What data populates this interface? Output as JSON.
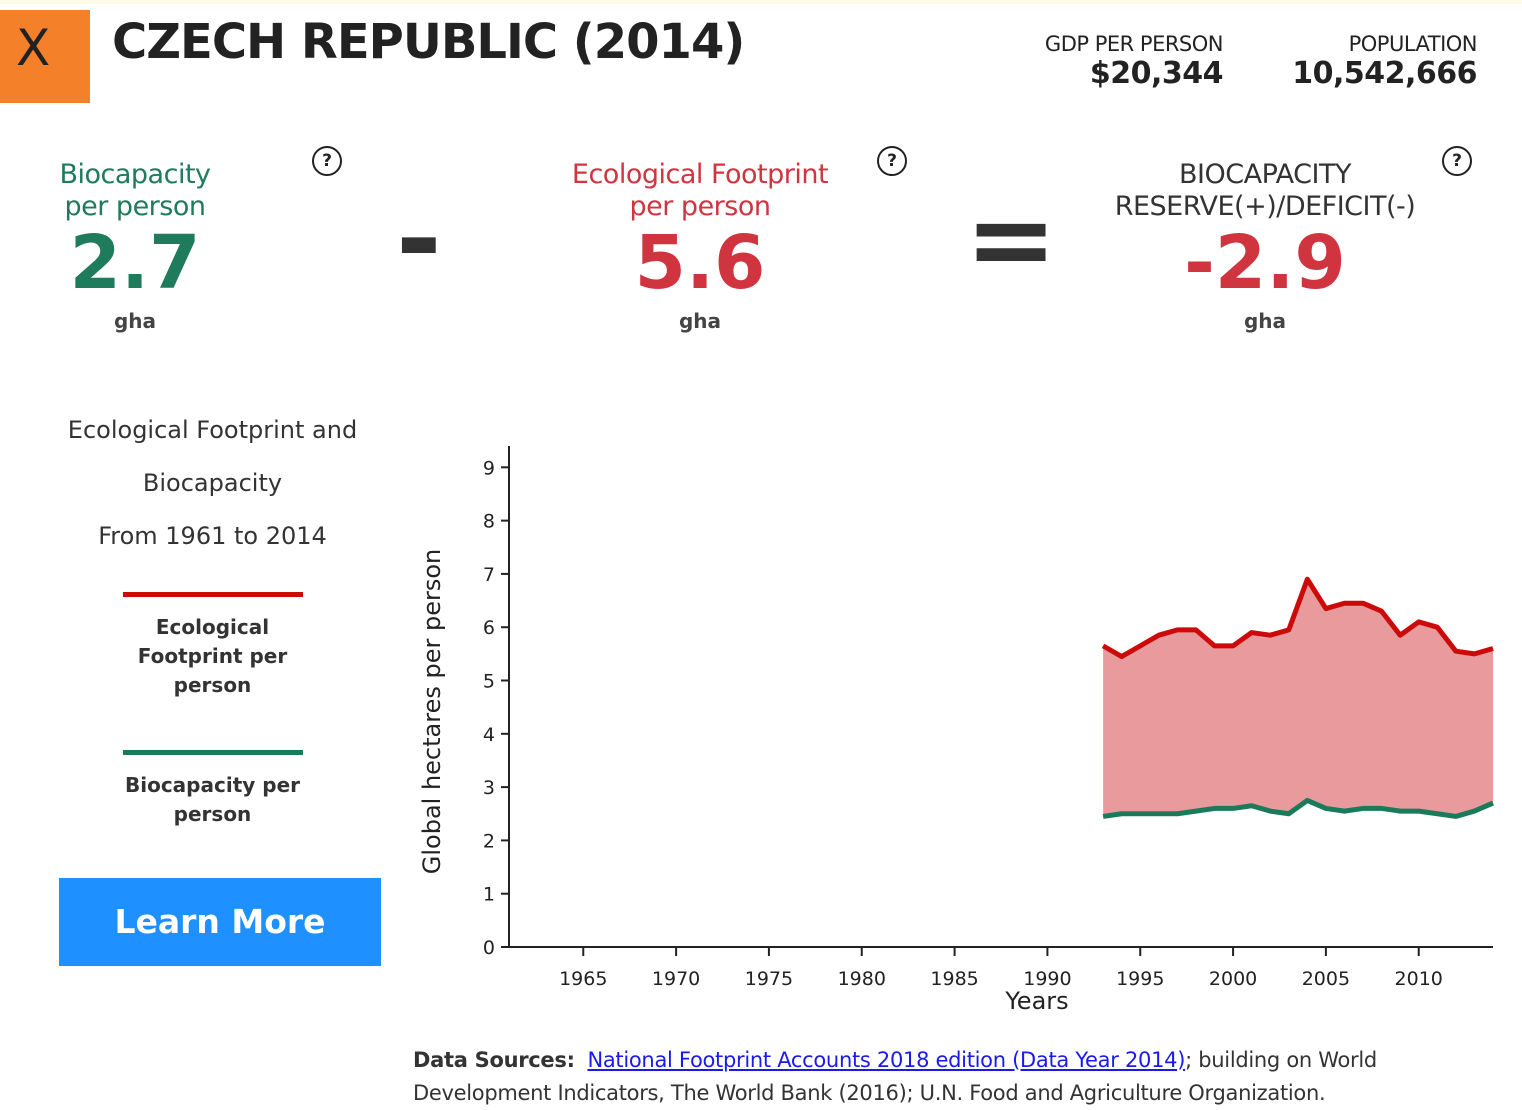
{
  "header": {
    "close": "X",
    "title": "CZECH REPUBLIC (2014)",
    "stats": [
      {
        "label": "GDP PER PERSON",
        "value": "$20,344"
      },
      {
        "label": "POPULATION",
        "value": "10,542,666"
      }
    ]
  },
  "summary": {
    "items": [
      {
        "label": "Biocapacity per person",
        "value": 2.7,
        "unit": "gha",
        "help": "?",
        "color": "#1e7b5c"
      },
      {
        "label": "Ecological Footprint per person",
        "value": 5.6,
        "unit": "gha",
        "help": "?",
        "color": "#d0343f"
      },
      {
        "label": "BIOCAPACITY RESERVE(+)/DEFICIT(-)",
        "value": -2.9,
        "unit": "gha",
        "help": "?",
        "color": "#d0343f"
      }
    ],
    "operators": [
      "-",
      "="
    ]
  },
  "sidebar": {
    "description": [
      "Ecological Footprint and",
      "Biocapacity",
      "From 1961 to 2014"
    ],
    "button": "Learn More"
  },
  "chart_data": {
    "type": "line",
    "x_label": "Years",
    "y_label": "Global hectares per person",
    "x": [
      1993,
      1994,
      1995,
      1996,
      1997,
      1998,
      1999,
      2000,
      2001,
      2002,
      2003,
      2004,
      2005,
      2006,
      2007,
      2008,
      2009,
      2010,
      2011,
      2012,
      2013,
      2014
    ],
    "series": [
      {
        "name": "Ecological Footprint per person",
        "color": "#cc0a0a",
        "values": [
          5.65,
          5.45,
          5.65,
          5.85,
          5.95,
          5.95,
          5.65,
          5.65,
          5.9,
          5.85,
          5.95,
          6.9,
          6.35,
          6.45,
          6.45,
          6.3,
          5.85,
          6.1,
          6.0,
          5.55,
          5.5,
          5.6
        ]
      },
      {
        "name": "Biocapacity per person",
        "color": "#1b7a5a",
        "values": [
          2.45,
          2.5,
          2.5,
          2.5,
          2.5,
          2.55,
          2.6,
          2.6,
          2.65,
          2.55,
          2.5,
          2.75,
          2.6,
          2.55,
          2.6,
          2.6,
          2.55,
          2.55,
          2.5,
          2.45,
          2.55,
          2.7
        ]
      }
    ],
    "fill_between_color": "#e89a9c",
    "xlim": [
      1961,
      2014
    ],
    "xticks": [
      1965,
      1970,
      1975,
      1980,
      1985,
      1990,
      1995,
      2000,
      2005,
      2010
    ],
    "ylim": [
      0,
      9.4
    ],
    "yticks": [
      0,
      1,
      2,
      3,
      4,
      5,
      6,
      7,
      8,
      9
    ]
  },
  "footer": {
    "label": "Data Sources:",
    "link": "National Footprint Accounts 2018 edition (Data Year 2014)",
    "text": "; building on World Development Indicators, The World Bank (2016); U.N. Food and Agriculture Organization."
  }
}
